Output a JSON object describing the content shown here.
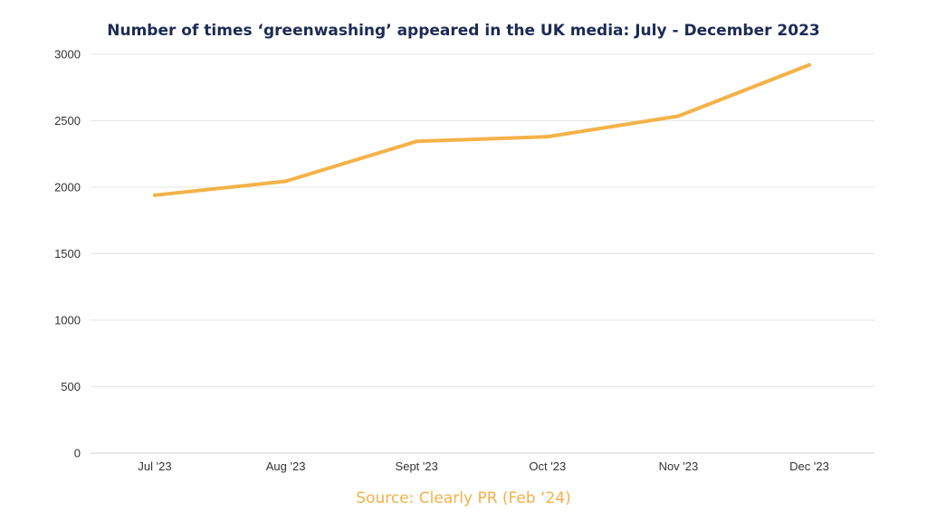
{
  "chart_data": {
    "type": "line",
    "title": "Number of times ‘greenwashing’ appeared in the UK media: July - December 2023",
    "categories": [
      "Jul '23",
      "Aug '23",
      "Sept '23",
      "Oct '23",
      "Nov '23",
      "Dec '23"
    ],
    "series": [
      {
        "values": [
          1940,
          2045,
          2345,
          2380,
          2535,
          2920
        ],
        "color": "#f4b248"
      }
    ],
    "yticks": [
      0,
      500,
      1000,
      1500,
      2000,
      2500,
      3000
    ],
    "ylim": [
      0,
      3000
    ],
    "grid": true,
    "gridlines": "horizontal",
    "legend": "none"
  },
  "source": "Source: Clearly PR (Feb ‘24)"
}
